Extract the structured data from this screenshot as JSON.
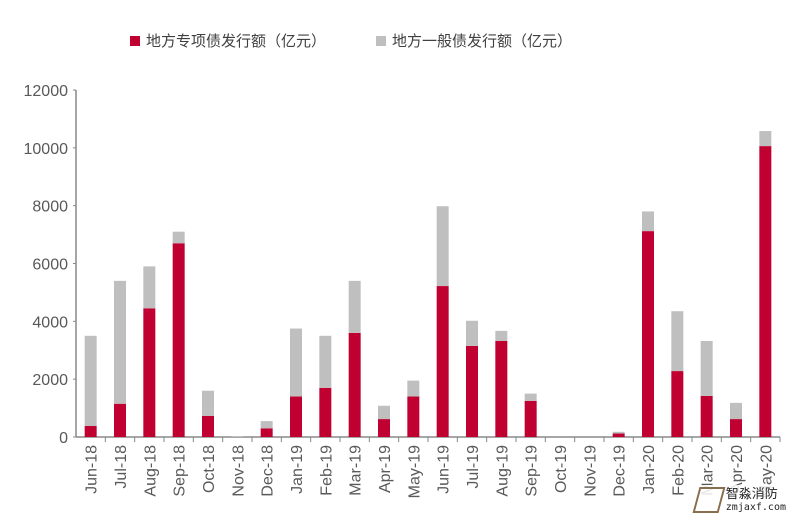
{
  "chart_data": {
    "type": "bar",
    "stacked": true,
    "title": "",
    "xlabel": "",
    "ylabel": "",
    "ylim": [
      0,
      12000
    ],
    "yticks": [
      0,
      2000,
      4000,
      6000,
      8000,
      10000,
      12000
    ],
    "grid": false,
    "legend_position": "top",
    "categories": [
      "Jun-18",
      "Jul-18",
      "Aug-18",
      "Sep-18",
      "Oct-18",
      "Nov-18",
      "Dec-18",
      "Jan-19",
      "Feb-19",
      "Mar-19",
      "Apr-19",
      "May-19",
      "Jun-19",
      "Jul-19",
      "Aug-19",
      "Sep-19",
      "Oct-19",
      "Nov-19",
      "Dec-19",
      "Jan-20",
      "Feb-20",
      "Mar-20",
      "Apr-20",
      "May-20"
    ],
    "series": [
      {
        "name": "地方专项债发行额（亿元）",
        "color": "#C00030",
        "values": [
          380,
          1150,
          4450,
          6700,
          730,
          0,
          300,
          1400,
          1700,
          3600,
          620,
          1400,
          5220,
          3150,
          3320,
          1250,
          0,
          0,
          120,
          7120,
          2280,
          1420,
          620,
          10060
        ]
      },
      {
        "name": "地方一般债发行额（亿元）",
        "color": "#BFBFBF",
        "values": [
          3120,
          4250,
          1450,
          400,
          870,
          20,
          250,
          2350,
          1800,
          1800,
          460,
          550,
          2760,
          870,
          350,
          250,
          0,
          0,
          60,
          680,
          2070,
          1900,
          560,
          520
        ]
      }
    ]
  },
  "watermark": {
    "name": "智淼消防",
    "url": "zmjaxf.com"
  }
}
